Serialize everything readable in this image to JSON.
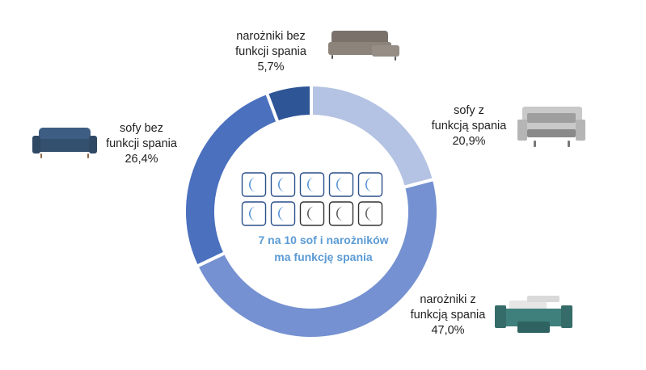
{
  "chart_data": {
    "type": "pie",
    "style": "donut",
    "title": "",
    "slices": [
      {
        "label_lines": [
          "sofy z",
          "funkcją spania"
        ],
        "value": 20.9,
        "value_label": "20,9%",
        "color": "#b4c3e3",
        "icon": "sofa-bed-icon"
      },
      {
        "label_lines": [
          "narożniki z",
          "funkcją spania"
        ],
        "value": 47.0,
        "value_label": "47,0%",
        "color": "#7591d1",
        "icon": "corner-sofa-bed-icon"
      },
      {
        "label_lines": [
          "sofy bez",
          "funkcji spania"
        ],
        "value": 26.4,
        "value_label": "26,4%",
        "color": "#4a70be",
        "icon": "sofa-icon"
      },
      {
        "label_lines": [
          "narożniki bez",
          "funkcji spania"
        ],
        "value": 5.7,
        "value_label": "5,7%",
        "color": "#2e5596",
        "icon": "corner-sofa-icon"
      }
    ],
    "center": {
      "lines": [
        "7 na 10 sof i narożników",
        "ma funkcję spania"
      ],
      "color": "#5b9bd5",
      "icons": {
        "total": 10,
        "highlighted": 7,
        "highlight_icon": "moon-blue-icon",
        "other_icon": "moon-gray-icon"
      }
    }
  }
}
